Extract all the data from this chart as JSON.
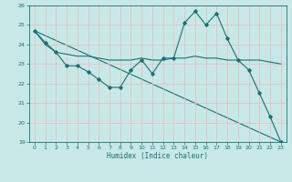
{
  "xlabel": "Humidex (Indice chaleur)",
  "xlim": [
    -0.5,
    23.5
  ],
  "ylim": [
    19,
    26
  ],
  "yticks": [
    19,
    20,
    21,
    22,
    23,
    24,
    25,
    26
  ],
  "xticks": [
    0,
    1,
    2,
    3,
    4,
    5,
    6,
    7,
    8,
    9,
    10,
    11,
    12,
    13,
    14,
    15,
    16,
    17,
    18,
    19,
    20,
    21,
    22,
    23
  ],
  "bg_color": "#c8e8e8",
  "grid_color": "#aacfcf",
  "line_color": "#1a7070",
  "line1_x": [
    0,
    1,
    2,
    3,
    4,
    5,
    6,
    7,
    8,
    9,
    10,
    11,
    12,
    13,
    14,
    15,
    16,
    17,
    18,
    19,
    20,
    21,
    22,
    23
  ],
  "line1_y": [
    24.7,
    24.1,
    23.6,
    22.9,
    22.9,
    22.6,
    22.2,
    21.8,
    21.8,
    22.7,
    23.2,
    22.5,
    23.3,
    23.3,
    25.1,
    25.7,
    25.0,
    25.6,
    24.3,
    23.2,
    22.7,
    21.5,
    20.3,
    19.0
  ],
  "line2_x": [
    0,
    1,
    2,
    3,
    4,
    5,
    6,
    7,
    8,
    9,
    10,
    11,
    12,
    13,
    14,
    15,
    16,
    17,
    18,
    19,
    20,
    21,
    22,
    23
  ],
  "line2_y": [
    24.7,
    24.0,
    23.6,
    23.5,
    23.4,
    23.4,
    23.3,
    23.2,
    23.2,
    23.2,
    23.3,
    23.2,
    23.2,
    23.3,
    23.3,
    23.4,
    23.3,
    23.3,
    23.2,
    23.2,
    23.2,
    23.2,
    23.1,
    23.0
  ],
  "line3_x": [
    0,
    23
  ],
  "line3_y": [
    24.7,
    19.0
  ]
}
